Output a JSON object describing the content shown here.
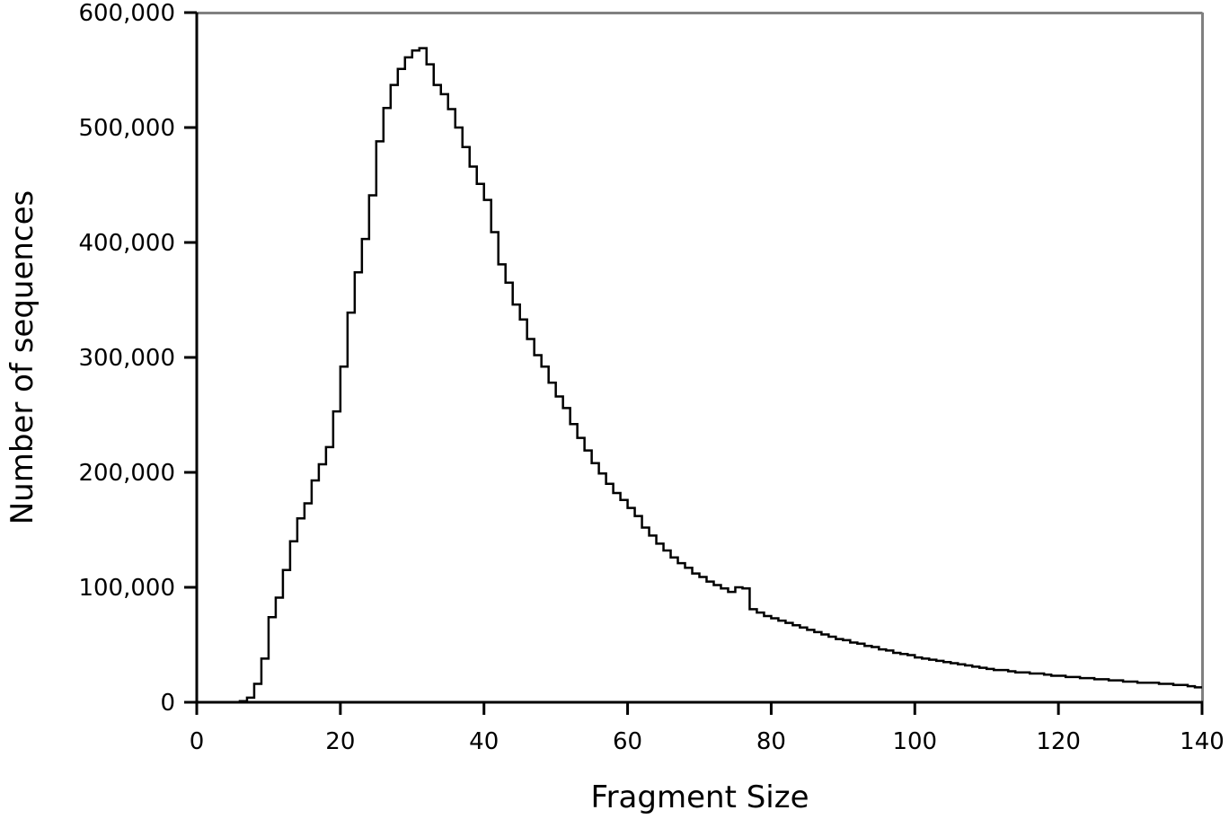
{
  "chart_data": {
    "type": "histogram",
    "xlabel": "Fragment Size",
    "ylabel": "Number of sequences",
    "xlim": [
      0,
      140
    ],
    "ylim": [
      0,
      600000
    ],
    "x_ticks": [
      0,
      20,
      40,
      60,
      80,
      100,
      120,
      140
    ],
    "x_tick_labels": [
      "0",
      "20",
      "40",
      "60",
      "80",
      "100",
      "120",
      "140"
    ],
    "y_ticks": [
      0,
      100000,
      200000,
      300000,
      400000,
      500000,
      600000
    ],
    "y_tick_labels": [
      "0",
      "100,000",
      "200,000",
      "300,000",
      "400,000",
      "500,000",
      "600,000"
    ],
    "grid": false,
    "bin_width": 1,
    "bin_starts": [
      0,
      1,
      2,
      3,
      4,
      5,
      6,
      7,
      8,
      9,
      10,
      11,
      12,
      13,
      14,
      15,
      16,
      17,
      18,
      19,
      20,
      21,
      22,
      23,
      24,
      25,
      26,
      27,
      28,
      29,
      30,
      31,
      32,
      33,
      34,
      35,
      36,
      37,
      38,
      39,
      40,
      41,
      42,
      43,
      44,
      45,
      46,
      47,
      48,
      49,
      50,
      51,
      52,
      53,
      54,
      55,
      56,
      57,
      58,
      59,
      60,
      61,
      62,
      63,
      64,
      65,
      66,
      67,
      68,
      69,
      70,
      71,
      72,
      73,
      74,
      75,
      76,
      77,
      78,
      79,
      80,
      81,
      82,
      83,
      84,
      85,
      86,
      87,
      88,
      89,
      90,
      91,
      92,
      93,
      94,
      95,
      96,
      97,
      98,
      99,
      100,
      101,
      102,
      103,
      104,
      105,
      106,
      107,
      108,
      109,
      110,
      111,
      112,
      113,
      114,
      115,
      116,
      117,
      118,
      119,
      120,
      121,
      122,
      123,
      124,
      125,
      126,
      127,
      128,
      129,
      130,
      131,
      132,
      133,
      134,
      135,
      136,
      137,
      138,
      139
    ],
    "values": [
      0,
      0,
      0,
      0,
      0,
      0,
      1000,
      4000,
      16000,
      38000,
      74000,
      91000,
      115000,
      140000,
      160000,
      173000,
      193000,
      207000,
      222000,
      253000,
      292000,
      339000,
      374000,
      403000,
      441000,
      488000,
      517000,
      537000,
      551000,
      561000,
      567000,
      569000,
      555000,
      537000,
      529000,
      516000,
      500000,
      483000,
      466000,
      451000,
      437000,
      409000,
      381000,
      365000,
      346000,
      333000,
      316000,
      302000,
      292000,
      278000,
      266000,
      256000,
      242000,
      230000,
      219000,
      208000,
      199000,
      190000,
      182000,
      176000,
      169000,
      162000,
      152000,
      145000,
      138000,
      132000,
      126000,
      121000,
      117000,
      112000,
      109000,
      105000,
      102000,
      99000,
      96000,
      100000,
      99000,
      81000,
      78000,
      75000,
      73000,
      71000,
      69000,
      67000,
      65000,
      63000,
      61000,
      59000,
      57000,
      55000,
      54000,
      52000,
      51000,
      49000,
      48000,
      46000,
      45000,
      43000,
      42000,
      41000,
      39000,
      38000,
      37000,
      36000,
      35000,
      34000,
      33000,
      32000,
      31000,
      30000,
      29000,
      28000,
      28000,
      27000,
      26000,
      26000,
      25000,
      25000,
      24000,
      23000,
      23000,
      22000,
      22000,
      21000,
      21000,
      20000,
      20000,
      19000,
      19000,
      18000,
      18000,
      17000,
      17000,
      17000,
      16000,
      16000,
      15000,
      15000,
      14000,
      13000
    ]
  }
}
